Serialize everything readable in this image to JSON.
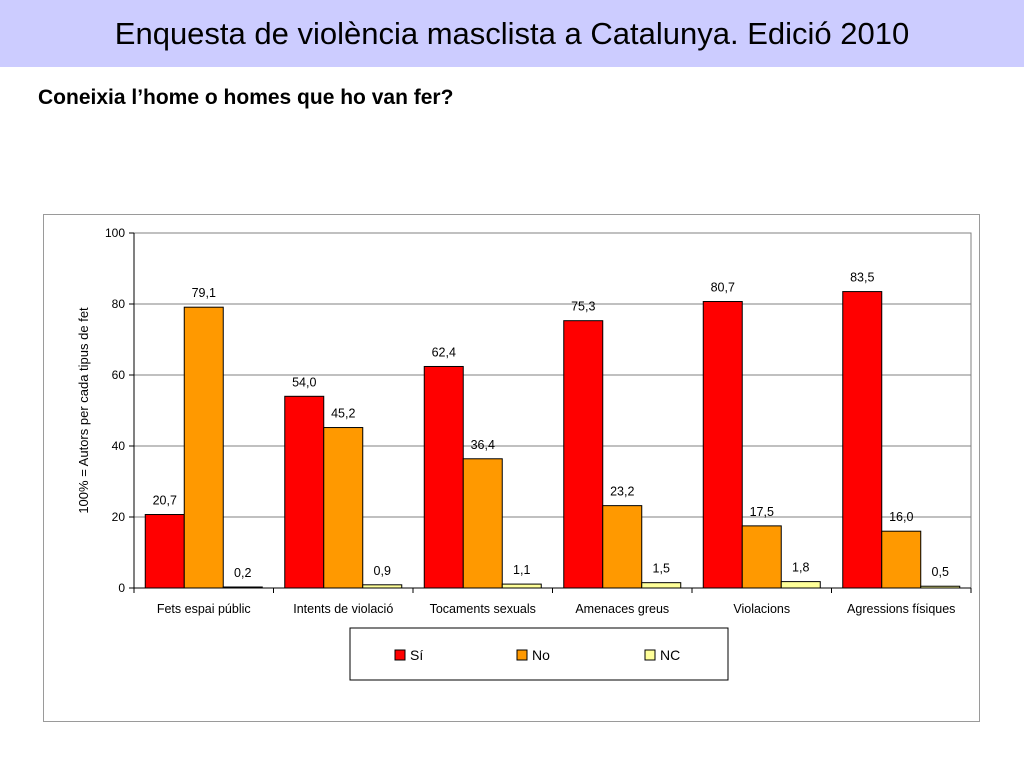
{
  "header": {
    "title": "Enquesta de violència masclista a Catalunya. Edició 2010"
  },
  "subtitle": "Coneixia l’home o homes que ho van fer?",
  "colors": {
    "title_bg": "#ccccff",
    "si": "#ff0000",
    "no": "#ff9900",
    "nc": "#ffff99"
  },
  "chart_data": {
    "type": "bar",
    "title": "",
    "xlabel": "",
    "ylabel": "100% = Autors per cada tipus de fet",
    "ylim": [
      0,
      100
    ],
    "yticks": [
      0,
      20,
      40,
      60,
      80,
      100
    ],
    "grid": true,
    "legend_position": "bottom",
    "categories": [
      "Fets espai públic",
      "Intents de violació",
      "Tocaments sexuals",
      "Amenaces greus",
      "Violacions",
      "Agressions físiques"
    ],
    "series": [
      {
        "name": "Sí",
        "color": "#ff0000",
        "values": [
          20.7,
          54.0,
          62.4,
          75.3,
          80.7,
          83.5
        ],
        "labels": [
          "20,7",
          "54,0",
          "62,4",
          "75,3",
          "80,7",
          "83,5"
        ]
      },
      {
        "name": "No",
        "color": "#ff9900",
        "values": [
          79.1,
          45.2,
          36.4,
          23.2,
          17.5,
          16.0
        ],
        "labels": [
          "79,1",
          "45,2",
          "36,4",
          "23,2",
          "17,5",
          "16,0"
        ]
      },
      {
        "name": "NC",
        "color": "#ffff99",
        "values": [
          0.2,
          0.9,
          1.1,
          1.5,
          1.8,
          0.5
        ],
        "labels": [
          "0,2",
          "0,9",
          "1,1",
          "1,5",
          "1,8",
          "0,5"
        ]
      }
    ]
  }
}
